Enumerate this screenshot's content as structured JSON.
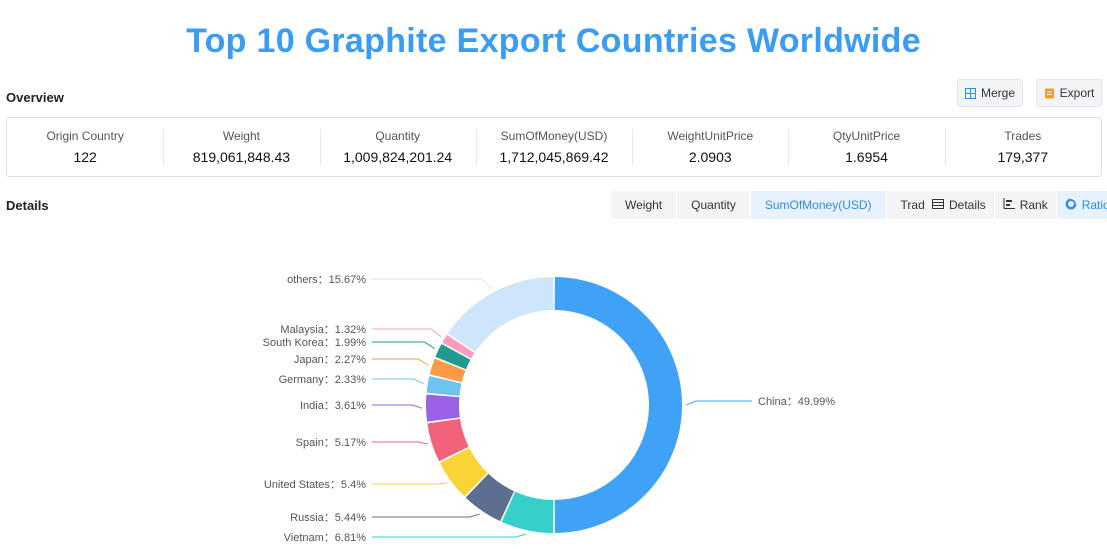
{
  "title": "Top 10 Graphite Export Countries Worldwide",
  "overview": {
    "label": "Overview",
    "merge_label": "Merge",
    "export_label": "Export",
    "stats": [
      {
        "key": "Origin Country",
        "value": "122"
      },
      {
        "key": "Weight",
        "value": "819,061,848.43"
      },
      {
        "key": "Quantity",
        "value": "1,009,824,201.24"
      },
      {
        "key": "SumOfMoney(USD)",
        "value": "1,712,045,869.42"
      },
      {
        "key": "WeightUnitPrice",
        "value": "2.0903"
      },
      {
        "key": "QtyUnitPrice",
        "value": "1.6954"
      },
      {
        "key": "Trades",
        "value": "179,377"
      }
    ]
  },
  "details": {
    "label": "Details",
    "metric_tabs": [
      "Weight",
      "Quantity",
      "SumOfMoney(USD)",
      "Trades"
    ],
    "active_metric": "SumOfMoney(USD)",
    "view_tabs": [
      "Details",
      "Rank",
      "Ratio"
    ],
    "active_view": "Ratio"
  },
  "colors": {
    "accent": "#2d8cf0",
    "title": "#3a9cf4"
  },
  "chart_data": {
    "type": "pie",
    "variant": "donut",
    "unit": "%",
    "slices": [
      {
        "name": "China",
        "value": 49.99,
        "label": "China：49.99%",
        "color": "#3fa2f7"
      },
      {
        "name": "Vietnam",
        "value": 6.81,
        "label": "Vietnam：6.81%",
        "color": "#36cfc9"
      },
      {
        "name": "Russia",
        "value": 5.44,
        "label": "Russia：5.44%",
        "color": "#5d6f8e"
      },
      {
        "name": "United States",
        "value": 5.4,
        "label": "United States：5.4%",
        "color": "#fad337"
      },
      {
        "name": "Spain",
        "value": 5.17,
        "label": "Spain：5.17%",
        "color": "#f2637b"
      },
      {
        "name": "India",
        "value": 3.61,
        "label": "India：3.61%",
        "color": "#9a60e6"
      },
      {
        "name": "Germany",
        "value": 2.33,
        "label": "Germany：2.33%",
        "color": "#6ec4ee"
      },
      {
        "name": "Japan",
        "value": 2.27,
        "label": "Japan：2.27%",
        "color": "#fe9a46"
      },
      {
        "name": "South Korea",
        "value": 1.99,
        "label": "South Korea：1.99%",
        "color": "#229a8f"
      },
      {
        "name": "Malaysia",
        "value": 1.32,
        "label": "Malaysia：1.32%",
        "color": "#ff9bc0"
      },
      {
        "name": "others",
        "value": 15.67,
        "label": "others：15.67%",
        "color": "#cde6fb"
      }
    ]
  }
}
